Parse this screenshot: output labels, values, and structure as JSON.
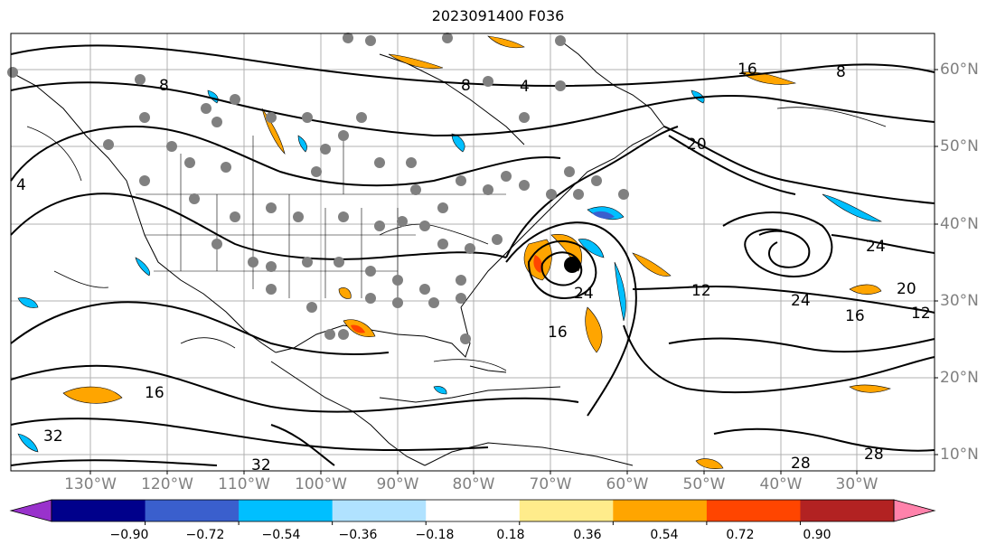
{
  "title": "2023091400 F036",
  "lat_labels": [
    "60°N",
    "50°N",
    "40°N",
    "30°N",
    "20°N",
    "10°N"
  ],
  "lon_labels": [
    "130°W",
    "120°W",
    "110°W",
    "100°W",
    "90°W",
    "80°W",
    "70°W",
    "60°W",
    "50°W",
    "40°W",
    "30°W"
  ],
  "colorbar": {
    "colors": [
      "#9932cc",
      "#00008b",
      "#3a5fcd",
      "#00bfff",
      "#b0e2ff",
      "#ffffff",
      "#ffec8b",
      "#ffa500",
      "#ff4500",
      "#b22222",
      "#ff82ab"
    ],
    "tick_labels": [
      "−0.90",
      "−0.72",
      "−0.54",
      "−0.36",
      "−0.18",
      "0.18",
      "0.36",
      "0.54",
      "0.72",
      "0.90"
    ]
  },
  "contour_labels": [
    "4",
    "8",
    "8",
    "12",
    "12",
    "16",
    "16",
    "16",
    "20",
    "20",
    "24",
    "24",
    "24",
    "28",
    "28",
    "32",
    "32",
    "16",
    "8",
    "4"
  ],
  "storm_center": "hurricane-center-marker"
}
